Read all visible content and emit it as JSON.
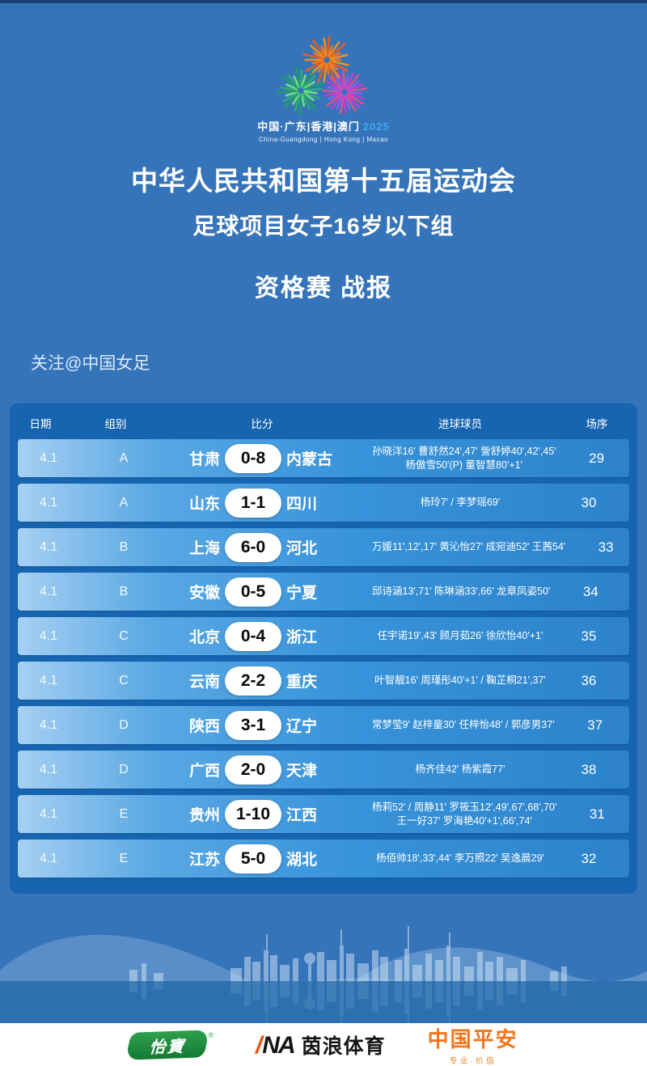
{
  "logo": {
    "line1_cn": "中国·广东|香港|澳门",
    "year": "2025",
    "line2_en": "China-Guangdong | Hong Kong | Macao",
    "burst_colors": {
      "orange": [
        "#f4772a",
        "#f29414",
        "#ef5c1a"
      ],
      "green": [
        "#2bb271",
        "#7fd98f",
        "#1f9e63"
      ],
      "magenta": [
        "#cb3ad2",
        "#e1518f",
        "#8f5fe8"
      ]
    }
  },
  "header": {
    "title": "中华人民共和国第十五届运动会",
    "subtitle": "足球项目女子16岁以下组",
    "report_title": "资格赛 战报",
    "follow": "关注@中国女足"
  },
  "table": {
    "columns": [
      "日期",
      "组别",
      "比分",
      "进球球员",
      "场序"
    ],
    "rows": [
      {
        "date": "4.1",
        "group": "A",
        "home": "甘肃",
        "score": "0-8",
        "away": "内蒙古",
        "scorers": "孙晓洋16' 曹舒然24',47' 訾舒婷40',42',45'\n杨傲雪50'(P) 董智慧80'+1'",
        "order": "29"
      },
      {
        "date": "4.1",
        "group": "A",
        "home": "山东",
        "score": "1-1",
        "away": "四川",
        "scorers": "杨玲7' / 李梦瑶69'",
        "order": "30"
      },
      {
        "date": "4.1",
        "group": "B",
        "home": "上海",
        "score": "6-0",
        "away": "河北",
        "scorers": "万媛11',12',17' 黄沁怡27' 成宛迪52' 王茜54'",
        "order": "33"
      },
      {
        "date": "4.1",
        "group": "B",
        "home": "安徽",
        "score": "0-5",
        "away": "宁夏",
        "scorers": "邱诗涵13',71' 陈琳涵33',66' 龙章凤姿50'",
        "order": "34"
      },
      {
        "date": "4.1",
        "group": "C",
        "home": "北京",
        "score": "0-4",
        "away": "浙江",
        "scorers": "任宇诺19',43' 顾月茹26' 徐欣怡40'+1'",
        "order": "35"
      },
      {
        "date": "4.1",
        "group": "C",
        "home": "云南",
        "score": "2-2",
        "away": "重庆",
        "scorers": "叶智靓16' 周瑾彤40'+1' / 鞠芷桐21',37'",
        "order": "36"
      },
      {
        "date": "4.1",
        "group": "D",
        "home": "陕西",
        "score": "3-1",
        "away": "辽宁",
        "scorers": "常梦莹9' 赵梓童30' 任梓怡48' / 郭彦男37'",
        "order": "37"
      },
      {
        "date": "4.1",
        "group": "D",
        "home": "广西",
        "score": "2-0",
        "away": "天津",
        "scorers": "杨齐佳42' 杨紫霞77'",
        "order": "38"
      },
      {
        "date": "4.1",
        "group": "E",
        "home": "贵州",
        "score": "1-10",
        "away": "江西",
        "scorers": "杨莉52' / 周静11' 罗筱玉12',49',67',68',70'\n王一好37' 罗海艳40'+1',66',74'",
        "order": "31"
      },
      {
        "date": "4.1",
        "group": "E",
        "home": "江苏",
        "score": "5-0",
        "away": "湖北",
        "scorers": "杨佰帅18',33',44' 李万照22' 吴逸晨29'",
        "order": "32"
      }
    ]
  },
  "sponsors": {
    "cestbon": "怡寶",
    "cestbon_reg": "®",
    "ina_slash": "/",
    "ina_na": "NA",
    "ina_text": "茵浪体育",
    "pingan": "中国平安",
    "pingan_sub": "专业·价值"
  }
}
